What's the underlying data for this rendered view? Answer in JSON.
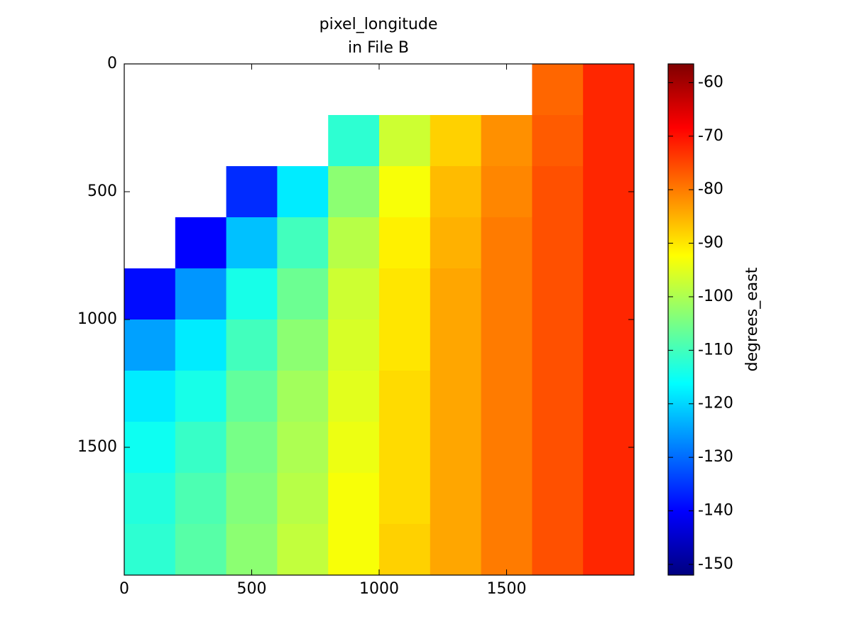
{
  "chart_data": {
    "type": "heatmap",
    "title": [
      "pixel_longitude",
      "in File B"
    ],
    "x": [
      100,
      300,
      500,
      700,
      900,
      1100,
      1300,
      1500,
      1700,
      1900
    ],
    "y": [
      100,
      300,
      500,
      700,
      900,
      1100,
      1300,
      1500,
      1700,
      1900
    ],
    "values": [
      [
        null,
        null,
        null,
        null,
        null,
        null,
        null,
        null,
        -78,
        -72
      ],
      [
        null,
        null,
        null,
        null,
        -112,
        -97,
        -88,
        -82,
        -77,
        -72
      ],
      [
        null,
        null,
        -136,
        -118,
        -103,
        -93,
        -86,
        -81,
        -76,
        -72
      ],
      [
        null,
        -140,
        -122,
        -110,
        -99,
        -91,
        -85,
        -80,
        -76,
        -72
      ],
      [
        -139,
        -126,
        -114,
        -106,
        -97,
        -90,
        -84,
        -80,
        -76,
        -72
      ],
      [
        -125,
        -118,
        -110,
        -103,
        -96,
        -90,
        -84,
        -80,
        -76,
        -72
      ],
      [
        -118,
        -114,
        -107,
        -101,
        -95,
        -89,
        -84,
        -80,
        -76,
        -72
      ],
      [
        -115,
        -111,
        -105,
        -100,
        -94,
        -89,
        -84,
        -80,
        -76,
        -72
      ],
      [
        -113,
        -109,
        -104,
        -99,
        -93,
        -89,
        -84,
        -80,
        -76,
        -72
      ],
      [
        -112,
        -108,
        -103,
        -98,
        -93,
        -88,
        -84,
        -80,
        -76,
        -72
      ]
    ],
    "xlim": [
      0,
      2000
    ],
    "ylim": [
      0,
      2000
    ],
    "y_inverted": true,
    "xticks": [
      0,
      500,
      1000,
      1500
    ],
    "yticks": [
      0,
      500,
      1000,
      1500
    ],
    "colorbar": {
      "label": "degrees_east",
      "clim": [
        -152,
        -56.5
      ],
      "ticks": [
        -60,
        -70,
        -80,
        -90,
        -100,
        -110,
        -120,
        -130,
        -140,
        -150
      ]
    },
    "colormap": [
      "#00007f",
      "#0000ff",
      "#007fff",
      "#00ffff",
      "#7fff7f",
      "#ffff00",
      "#ff7f00",
      "#ff0000",
      "#7f0000"
    ]
  }
}
